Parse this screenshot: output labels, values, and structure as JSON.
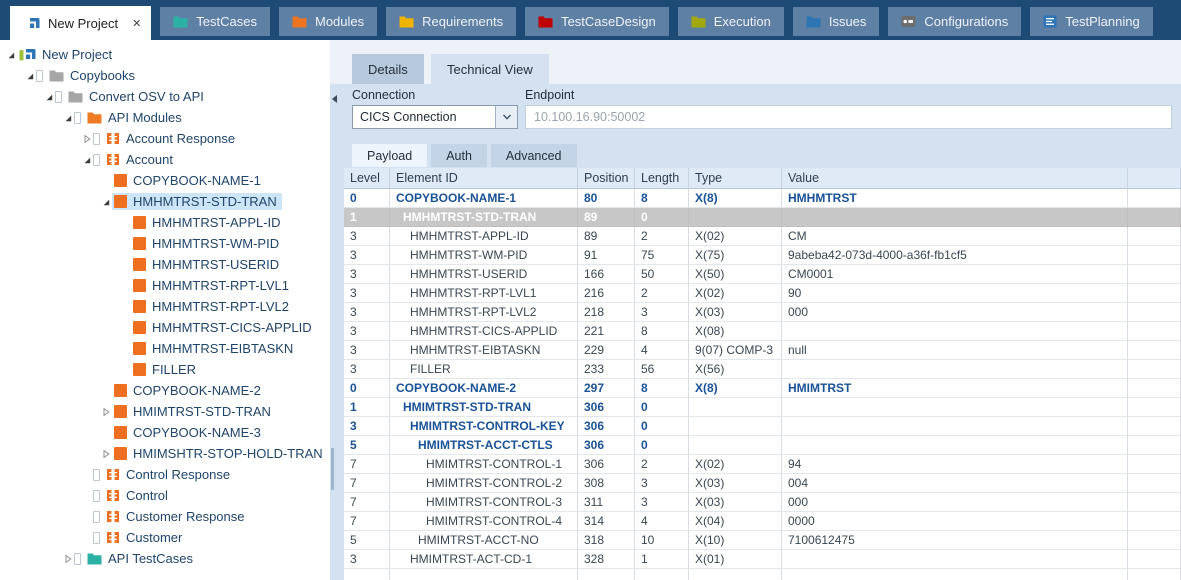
{
  "tab_bar": {
    "tabs": [
      {
        "label": "New Project",
        "icon": "logo",
        "active": true,
        "closable": true,
        "close_glyph": "✕"
      },
      {
        "label": "TestCases",
        "icon": "folder",
        "color": "#2cb2a5"
      },
      {
        "label": "Modules",
        "icon": "folder",
        "color": "#ee7420"
      },
      {
        "label": "Requirements",
        "icon": "folder",
        "color": "#f0b400"
      },
      {
        "label": "TestCaseDesign",
        "icon": "folder",
        "color": "#c00000"
      },
      {
        "label": "Execution",
        "icon": "folder",
        "color": "#a0a80e"
      },
      {
        "label": "Issues",
        "icon": "folder",
        "color": "#2e75b6"
      },
      {
        "label": "Configurations",
        "icon": "config",
        "color": "#6d6d6d"
      },
      {
        "label": "TestPlanning",
        "icon": "planning",
        "color": "#2e75b6"
      }
    ]
  },
  "tree": {
    "items": [
      {
        "label": "New Project",
        "depth": 0,
        "icon": "logo",
        "expand": "open"
      },
      {
        "label": "Copybooks",
        "depth": 1,
        "icon": "folder",
        "color": "#a6a6a6",
        "expand": "open",
        "doc": true
      },
      {
        "label": "Convert OSV to API",
        "depth": 2,
        "icon": "folder",
        "color": "#a6a6a6",
        "expand": "open",
        "doc": true
      },
      {
        "label": "API Modules",
        "depth": 3,
        "icon": "folder",
        "color": "#ee7a24",
        "expand": "open",
        "doc": true
      },
      {
        "label": "Account Response",
        "depth": 4,
        "icon": "module",
        "expand": "collapsed",
        "doc": true
      },
      {
        "label": "Account",
        "depth": 4,
        "icon": "module",
        "expand": "open",
        "doc": true
      },
      {
        "label": "COPYBOOK-NAME-1",
        "depth": 5,
        "icon": "square"
      },
      {
        "label": "HMHMTRST-STD-TRAN",
        "depth": 5,
        "icon": "square",
        "expand": "open",
        "selected": true
      },
      {
        "label": "HMHMTRST-APPL-ID",
        "depth": 6,
        "icon": "square"
      },
      {
        "label": "HMHMTRST-WM-PID",
        "depth": 6,
        "icon": "square"
      },
      {
        "label": "HMHMTRST-USERID",
        "depth": 6,
        "icon": "square"
      },
      {
        "label": "HMHMTRST-RPT-LVL1",
        "depth": 6,
        "icon": "square"
      },
      {
        "label": "HMHMTRST-RPT-LVL2",
        "depth": 6,
        "icon": "square"
      },
      {
        "label": "HMHMTRST-CICS-APPLID",
        "depth": 6,
        "icon": "square"
      },
      {
        "label": "HMHMTRST-EIBTASKN",
        "depth": 6,
        "icon": "square"
      },
      {
        "label": "FILLER",
        "depth": 6,
        "icon": "square"
      },
      {
        "label": "COPYBOOK-NAME-2",
        "depth": 5,
        "icon": "square"
      },
      {
        "label": "HMIMTRST-STD-TRAN",
        "depth": 5,
        "icon": "square",
        "expand": "collapsed"
      },
      {
        "label": "COPYBOOK-NAME-3",
        "depth": 5,
        "icon": "square"
      },
      {
        "label": "HMIMSHTR-STOP-HOLD-TRAN",
        "depth": 5,
        "icon": "square",
        "expand": "collapsed"
      },
      {
        "label": "Control Response",
        "depth": 4,
        "icon": "module",
        "doc": true
      },
      {
        "label": "Control",
        "depth": 4,
        "icon": "module",
        "doc": true
      },
      {
        "label": "Customer Response",
        "depth": 4,
        "icon": "module",
        "doc": true
      },
      {
        "label": "Customer",
        "depth": 4,
        "icon": "module",
        "doc": true
      },
      {
        "label": "API TestCases",
        "depth": 3,
        "icon": "folder",
        "color": "#2cb2a5",
        "expand": "collapsed",
        "doc": true
      }
    ]
  },
  "detail_tabs": {
    "details": "Details",
    "technical_view": "Technical View"
  },
  "connection": {
    "label": "Connection",
    "value": "CICS Connection"
  },
  "endpoint": {
    "label": "Endpoint",
    "value": "10.100.16.90:50002"
  },
  "payload_tabs": {
    "payload": "Payload",
    "auth": "Auth",
    "advanced": "Advanced"
  },
  "table": {
    "columns": [
      "Level",
      "Element ID",
      "Position",
      "Length",
      "Type",
      "Value",
      ""
    ],
    "rows": [
      {
        "level": "0",
        "id": "COPYBOOK-NAME-1",
        "position": "80",
        "length": "8",
        "type": "X(8)",
        "value": "HMHMTRST",
        "style": "bold"
      },
      {
        "level": "1",
        "id": "HMHMTRST-STD-TRAN",
        "position": "89",
        "length": "0",
        "type": "",
        "value": "",
        "style": "selected"
      },
      {
        "level": "3",
        "id": "HMHMTRST-APPL-ID",
        "position": "89",
        "length": "2",
        "type": "X(02)",
        "value": "CM",
        "style": "normal"
      },
      {
        "level": "3",
        "id": "HMHMTRST-WM-PID",
        "position": "91",
        "length": "75",
        "type": "X(75)",
        "value": "9abeba42-073d-4000-a36f-fb1cf5",
        "style": "normal"
      },
      {
        "level": "3",
        "id": "HMHMTRST-USERID",
        "position": "166",
        "length": "50",
        "type": "X(50)",
        "value": "CM0001",
        "style": "normal"
      },
      {
        "level": "3",
        "id": "HMHMTRST-RPT-LVL1",
        "position": "216",
        "length": "2",
        "type": "X(02)",
        "value": "90",
        "style": "normal"
      },
      {
        "level": "3",
        "id": "HMHMTRST-RPT-LVL2",
        "position": "218",
        "length": "3",
        "type": "X(03)",
        "value": "000",
        "style": "normal"
      },
      {
        "level": "3",
        "id": "HMHMTRST-CICS-APPLID",
        "position": "221",
        "length": "8",
        "type": "X(08)",
        "value": "",
        "style": "normal"
      },
      {
        "level": "3",
        "id": "HMHMTRST-EIBTASKN",
        "position": "229",
        "length": "4",
        "type": "9(07) COMP-3",
        "value": "null",
        "style": "normal"
      },
      {
        "level": "3",
        "id": "FILLER",
        "position": "233",
        "length": "56",
        "type": "X(56)",
        "value": "",
        "style": "normal"
      },
      {
        "level": "0",
        "id": "COPYBOOK-NAME-2",
        "position": "297",
        "length": "8",
        "type": "X(8)",
        "value": "HMIMTRST",
        "style": "bold"
      },
      {
        "level": "1",
        "id": "HMIMTRST-STD-TRAN",
        "position": "306",
        "length": "0",
        "type": "",
        "value": "",
        "style": "bold"
      },
      {
        "level": "3",
        "id": "HMIMTRST-CONTROL-KEY",
        "position": "306",
        "length": "0",
        "type": "",
        "value": "",
        "style": "bold"
      },
      {
        "level": "5",
        "id": "HMIMTRST-ACCT-CTLS",
        "position": "306",
        "length": "0",
        "type": "",
        "value": "",
        "style": "bold"
      },
      {
        "level": "7",
        "id": "HMIMTRST-CONTROL-1",
        "position": "306",
        "length": "2",
        "type": "X(02)",
        "value": "94",
        "style": "normal"
      },
      {
        "level": "7",
        "id": "HMIMTRST-CONTROL-2",
        "position": "308",
        "length": "3",
        "type": "X(03)",
        "value": "004",
        "style": "normal"
      },
      {
        "level": "7",
        "id": "HMIMTRST-CONTROL-3",
        "position": "311",
        "length": "3",
        "type": "X(03)",
        "value": "000",
        "style": "normal"
      },
      {
        "level": "7",
        "id": "HMIMTRST-CONTROL-4",
        "position": "314",
        "length": "4",
        "type": "X(04)",
        "value": "0000",
        "style": "normal"
      },
      {
        "level": "5",
        "id": "HMIMTRST-ACCT-NO",
        "position": "318",
        "length": "10",
        "type": "X(10)",
        "value": "7100612475",
        "style": "normal"
      },
      {
        "level": "3",
        "id": "HMIMTRST-ACT-CD-1",
        "position": "328",
        "length": "1",
        "type": "X(01)",
        "value": "",
        "style": "normal"
      }
    ]
  },
  "colors": {
    "topbar": "#1d4b75",
    "inactive_tab": "#5d80a4",
    "panel": "#d4e1f0",
    "accent_orange": "#ee6f1f",
    "bold_row_blue": "#1a5296",
    "selected_row_gray": "#c7c7c7",
    "tree_selection": "#cde5f8"
  }
}
